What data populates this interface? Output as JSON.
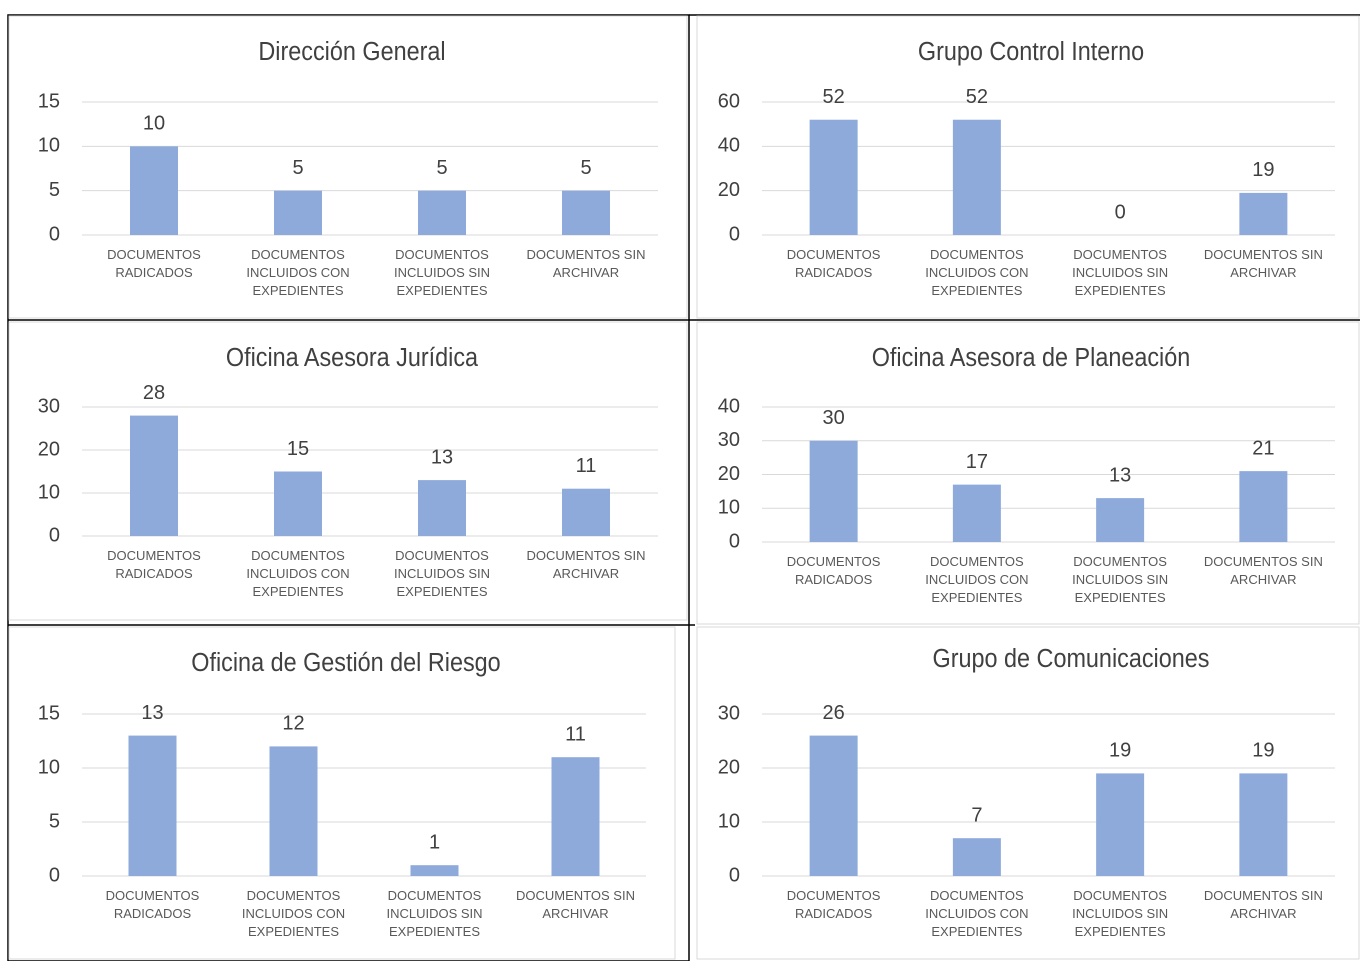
{
  "chart_data": [
    {
      "type": "bar",
      "title": "Dirección General",
      "categories": [
        "DOCUMENTOS RADICADOS",
        "DOCUMENTOS INCLUIDOS CON EXPEDIENTES",
        "DOCUMENTOS INCLUIDOS SIN EXPEDIENTES",
        "DOCUMENTOS SIN ARCHIVAR"
      ],
      "values": [
        10,
        5,
        5,
        5
      ],
      "color": "#8eaadb",
      "ylim": [
        0,
        15
      ],
      "yticks": [
        0,
        5,
        10,
        15
      ],
      "grid": true
    },
    {
      "type": "bar",
      "title": "Grupo Control Interno",
      "categories": [
        "DOCUMENTOS RADICADOS",
        "DOCUMENTOS INCLUIDOS CON EXPEDIENTES",
        "DOCUMENTOS INCLUIDOS SIN EXPEDIENTES",
        "DOCUMENTOS SIN ARCHIVAR"
      ],
      "values": [
        52,
        52,
        0,
        19
      ],
      "color": "#8eaadb",
      "ylim": [
        0,
        60
      ],
      "yticks": [
        0,
        20,
        40,
        60
      ],
      "grid": true
    },
    {
      "type": "bar",
      "title": "Oficina Asesora Jurídica",
      "categories": [
        "DOCUMENTOS RADICADOS",
        "DOCUMENTOS INCLUIDOS CON EXPEDIENTES",
        "DOCUMENTOS INCLUIDOS SIN EXPEDIENTES",
        "DOCUMENTOS SIN ARCHIVAR"
      ],
      "values": [
        28,
        15,
        13,
        11
      ],
      "color": "#8eaadb",
      "ylim": [
        0,
        30
      ],
      "yticks": [
        0,
        10,
        20,
        30
      ],
      "grid": true
    },
    {
      "type": "bar",
      "title": "Oficina Asesora de Planeación",
      "categories": [
        "DOCUMENTOS RADICADOS",
        "DOCUMENTOS INCLUIDOS CON EXPEDIENTES",
        "DOCUMENTOS INCLUIDOS SIN EXPEDIENTES",
        "DOCUMENTOS SIN ARCHIVAR"
      ],
      "values": [
        30,
        17,
        13,
        21
      ],
      "color": "#8eaadb",
      "ylim": [
        0,
        40
      ],
      "yticks": [
        0,
        10,
        20,
        30,
        40
      ],
      "grid": true
    },
    {
      "type": "bar",
      "title": "Oficina de Gestión del Riesgo",
      "categories": [
        "DOCUMENTOS RADICADOS",
        "DOCUMENTOS INCLUIDOS CON EXPEDIENTES",
        "DOCUMENTOS INCLUIDOS SIN EXPEDIENTES",
        "DOCUMENTOS SIN ARCHIVAR"
      ],
      "values": [
        13,
        12,
        1,
        11
      ],
      "color": "#8eaadb",
      "ylim": [
        0,
        15
      ],
      "yticks": [
        0,
        5,
        10,
        15
      ],
      "grid": true
    },
    {
      "type": "bar",
      "title": "Grupo de Comunicaciones",
      "categories": [
        "DOCUMENTOS RADICADOS",
        "DOCUMENTOS INCLUIDOS CON EXPEDIENTES",
        "DOCUMENTOS INCLUIDOS SIN EXPEDIENTES",
        "DOCUMENTOS SIN ARCHIVAR"
      ],
      "values": [
        26,
        7,
        19,
        19
      ],
      "color": "#8eaadb",
      "ylim": [
        0,
        30
      ],
      "yticks": [
        0,
        10,
        20,
        30
      ],
      "grid": true
    }
  ]
}
